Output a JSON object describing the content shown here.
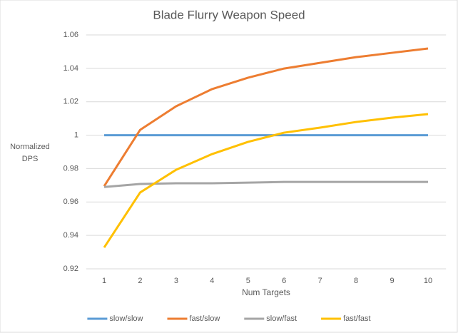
{
  "chart_data": {
    "type": "line",
    "title": "Blade Flurry Weapon Speed",
    "x_label": "Num Targets",
    "y_label": "Normalized DPS",
    "categories": [
      "1",
      "2",
      "3",
      "4",
      "5",
      "6",
      "7",
      "8",
      "9",
      "10"
    ],
    "series": [
      {
        "name": "slow/slow",
        "color": "#5b9bd5",
        "values": [
          1,
          1,
          1,
          1,
          1,
          1,
          1,
          1,
          1,
          1
        ]
      },
      {
        "name": "fast/slow",
        "color": "#ed7d31",
        "values": [
          0.9695,
          1.0032,
          1.0173,
          1.0276,
          1.0344,
          1.0399,
          1.0433,
          1.0467,
          1.0493,
          1.0519
        ]
      },
      {
        "name": "slow/fast",
        "color": "#a5a5a5",
        "values": [
          0.969,
          0.9708,
          0.9712,
          0.9712,
          0.9716,
          0.972,
          0.972,
          0.972,
          0.972,
          0.972
        ]
      },
      {
        "name": "fast/fast",
        "color": "#ffc000",
        "values": [
          0.9328,
          0.9657,
          0.9793,
          0.9887,
          0.996,
          1.0015,
          1.0045,
          1.0079,
          1.0105,
          1.0126
        ]
      }
    ],
    "ylim": [
      0.92,
      1.06
    ],
    "yticks": [
      0.92,
      0.94,
      0.96,
      0.98,
      1,
      1.02,
      1.04,
      1.06
    ],
    "grid": true,
    "legend": "bottom"
  }
}
